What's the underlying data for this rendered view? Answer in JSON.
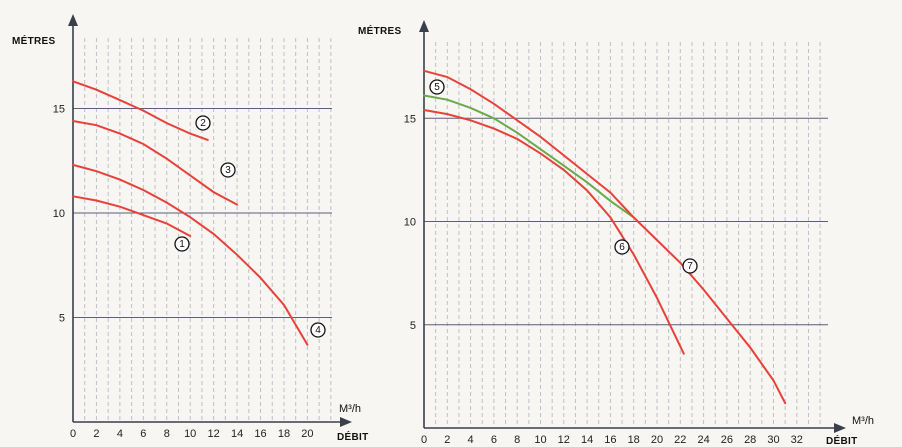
{
  "chart_data": [
    {
      "type": "line",
      "ylabel": "MÉTRES",
      "xlabel": "DÉBIT",
      "x_unit": "M³/h",
      "x_ticks": [
        0,
        2,
        4,
        6,
        8,
        10,
        12,
        14,
        16,
        18,
        20
      ],
      "y_ticks": [
        5,
        10,
        15
      ],
      "xlim": [
        0,
        22
      ],
      "ylim": [
        0,
        19
      ],
      "grid": true,
      "series": [
        {
          "name": "1",
          "color": "#e8413a",
          "label_at": [
            9.5,
            3.2
          ],
          "points": [
            [
              0,
              10.8
            ],
            [
              2,
              10.6
            ],
            [
              4,
              10.3
            ],
            [
              6,
              9.9
            ],
            [
              8,
              9.5
            ],
            [
              10,
              8.9
            ]
          ]
        },
        {
          "name": "2",
          "color": "#e8413a",
          "label_at": [
            11.2,
            4.4
          ],
          "points": [
            [
              0,
              16.3
            ],
            [
              2,
              15.9
            ],
            [
              4,
              15.4
            ],
            [
              6,
              14.9
            ],
            [
              8,
              14.3
            ],
            [
              10,
              13.8
            ],
            [
              11.5,
              13.5
            ]
          ]
        },
        {
          "name": "3",
          "color": "#e8413a",
          "label_at": [
            13.5,
            2.0
          ],
          "points": [
            [
              0,
              14.4
            ],
            [
              2,
              14.2
            ],
            [
              4,
              13.8
            ],
            [
              6,
              13.3
            ],
            [
              8,
              12.6
            ],
            [
              10,
              11.8
            ],
            [
              12,
              11.0
            ],
            [
              14,
              10.4
            ]
          ]
        },
        {
          "name": "4",
          "color": "#e8413a",
          "label_at": [
            20.6,
            0.0
          ],
          "points": [
            [
              0,
              12.3
            ],
            [
              2,
              12.0
            ],
            [
              4,
              11.6
            ],
            [
              6,
              11.1
            ],
            [
              8,
              10.5
            ],
            [
              10,
              9.8
            ],
            [
              12,
              9.0
            ],
            [
              14,
              8.0
            ],
            [
              16,
              6.9
            ],
            [
              18,
              5.6
            ],
            [
              20,
              3.7
            ]
          ]
        }
      ]
    },
    {
      "type": "line",
      "ylabel": "MÉTRES",
      "xlabel": "DÉBIT",
      "x_unit": "M³/h",
      "x_ticks": [
        0,
        2,
        4,
        6,
        8,
        10,
        12,
        14,
        16,
        18,
        20,
        22,
        24,
        26,
        28,
        30,
        32
      ],
      "y_ticks": [
        5,
        10,
        15
      ],
      "xlim": [
        0,
        36
      ],
      "ylim": [
        0,
        19.5
      ],
      "grid": true,
      "series": [
        {
          "name": "5",
          "color": "#6aaa4a",
          "label_at": [
            1.2,
            1.3
          ],
          "points": [
            [
              0,
              16.1
            ],
            [
              2,
              15.9
            ],
            [
              4,
              15.5
            ],
            [
              6,
              15.0
            ],
            [
              8,
              14.3
            ],
            [
              10,
              13.5
            ],
            [
              12,
              12.7
            ],
            [
              14,
              11.9
            ],
            [
              16,
              11.0
            ],
            [
              18,
              10.2
            ]
          ]
        },
        {
          "name": "6",
          "color": "#e8413a",
          "label_at": [
            17.2,
            -4.4
          ],
          "points": [
            [
              0,
              15.4
            ],
            [
              2,
              15.2
            ],
            [
              4,
              14.9
            ],
            [
              6,
              14.5
            ],
            [
              8,
              14.0
            ],
            [
              10,
              13.3
            ],
            [
              12,
              12.5
            ],
            [
              14,
              11.5
            ],
            [
              16,
              10.2
            ],
            [
              18,
              8.4
            ],
            [
              20,
              6.3
            ],
            [
              22.3,
              3.6
            ]
          ]
        },
        {
          "name": "7",
          "color": "#e8413a",
          "label_at": [
            23.1,
            -4.6
          ],
          "points": [
            [
              0,
              17.3
            ],
            [
              2,
              17.0
            ],
            [
              4,
              16.4
            ],
            [
              6,
              15.7
            ],
            [
              8,
              14.9
            ],
            [
              10,
              14.1
            ],
            [
              12,
              13.2
            ],
            [
              14,
              12.3
            ],
            [
              16,
              11.4
            ],
            [
              18,
              10.2
            ],
            [
              20,
              9.1
            ],
            [
              22,
              8.0
            ],
            [
              24,
              6.7
            ],
            [
              26,
              5.3
            ],
            [
              28,
              3.9
            ],
            [
              30,
              2.3
            ],
            [
              31,
              1.2
            ]
          ]
        }
      ]
    }
  ]
}
